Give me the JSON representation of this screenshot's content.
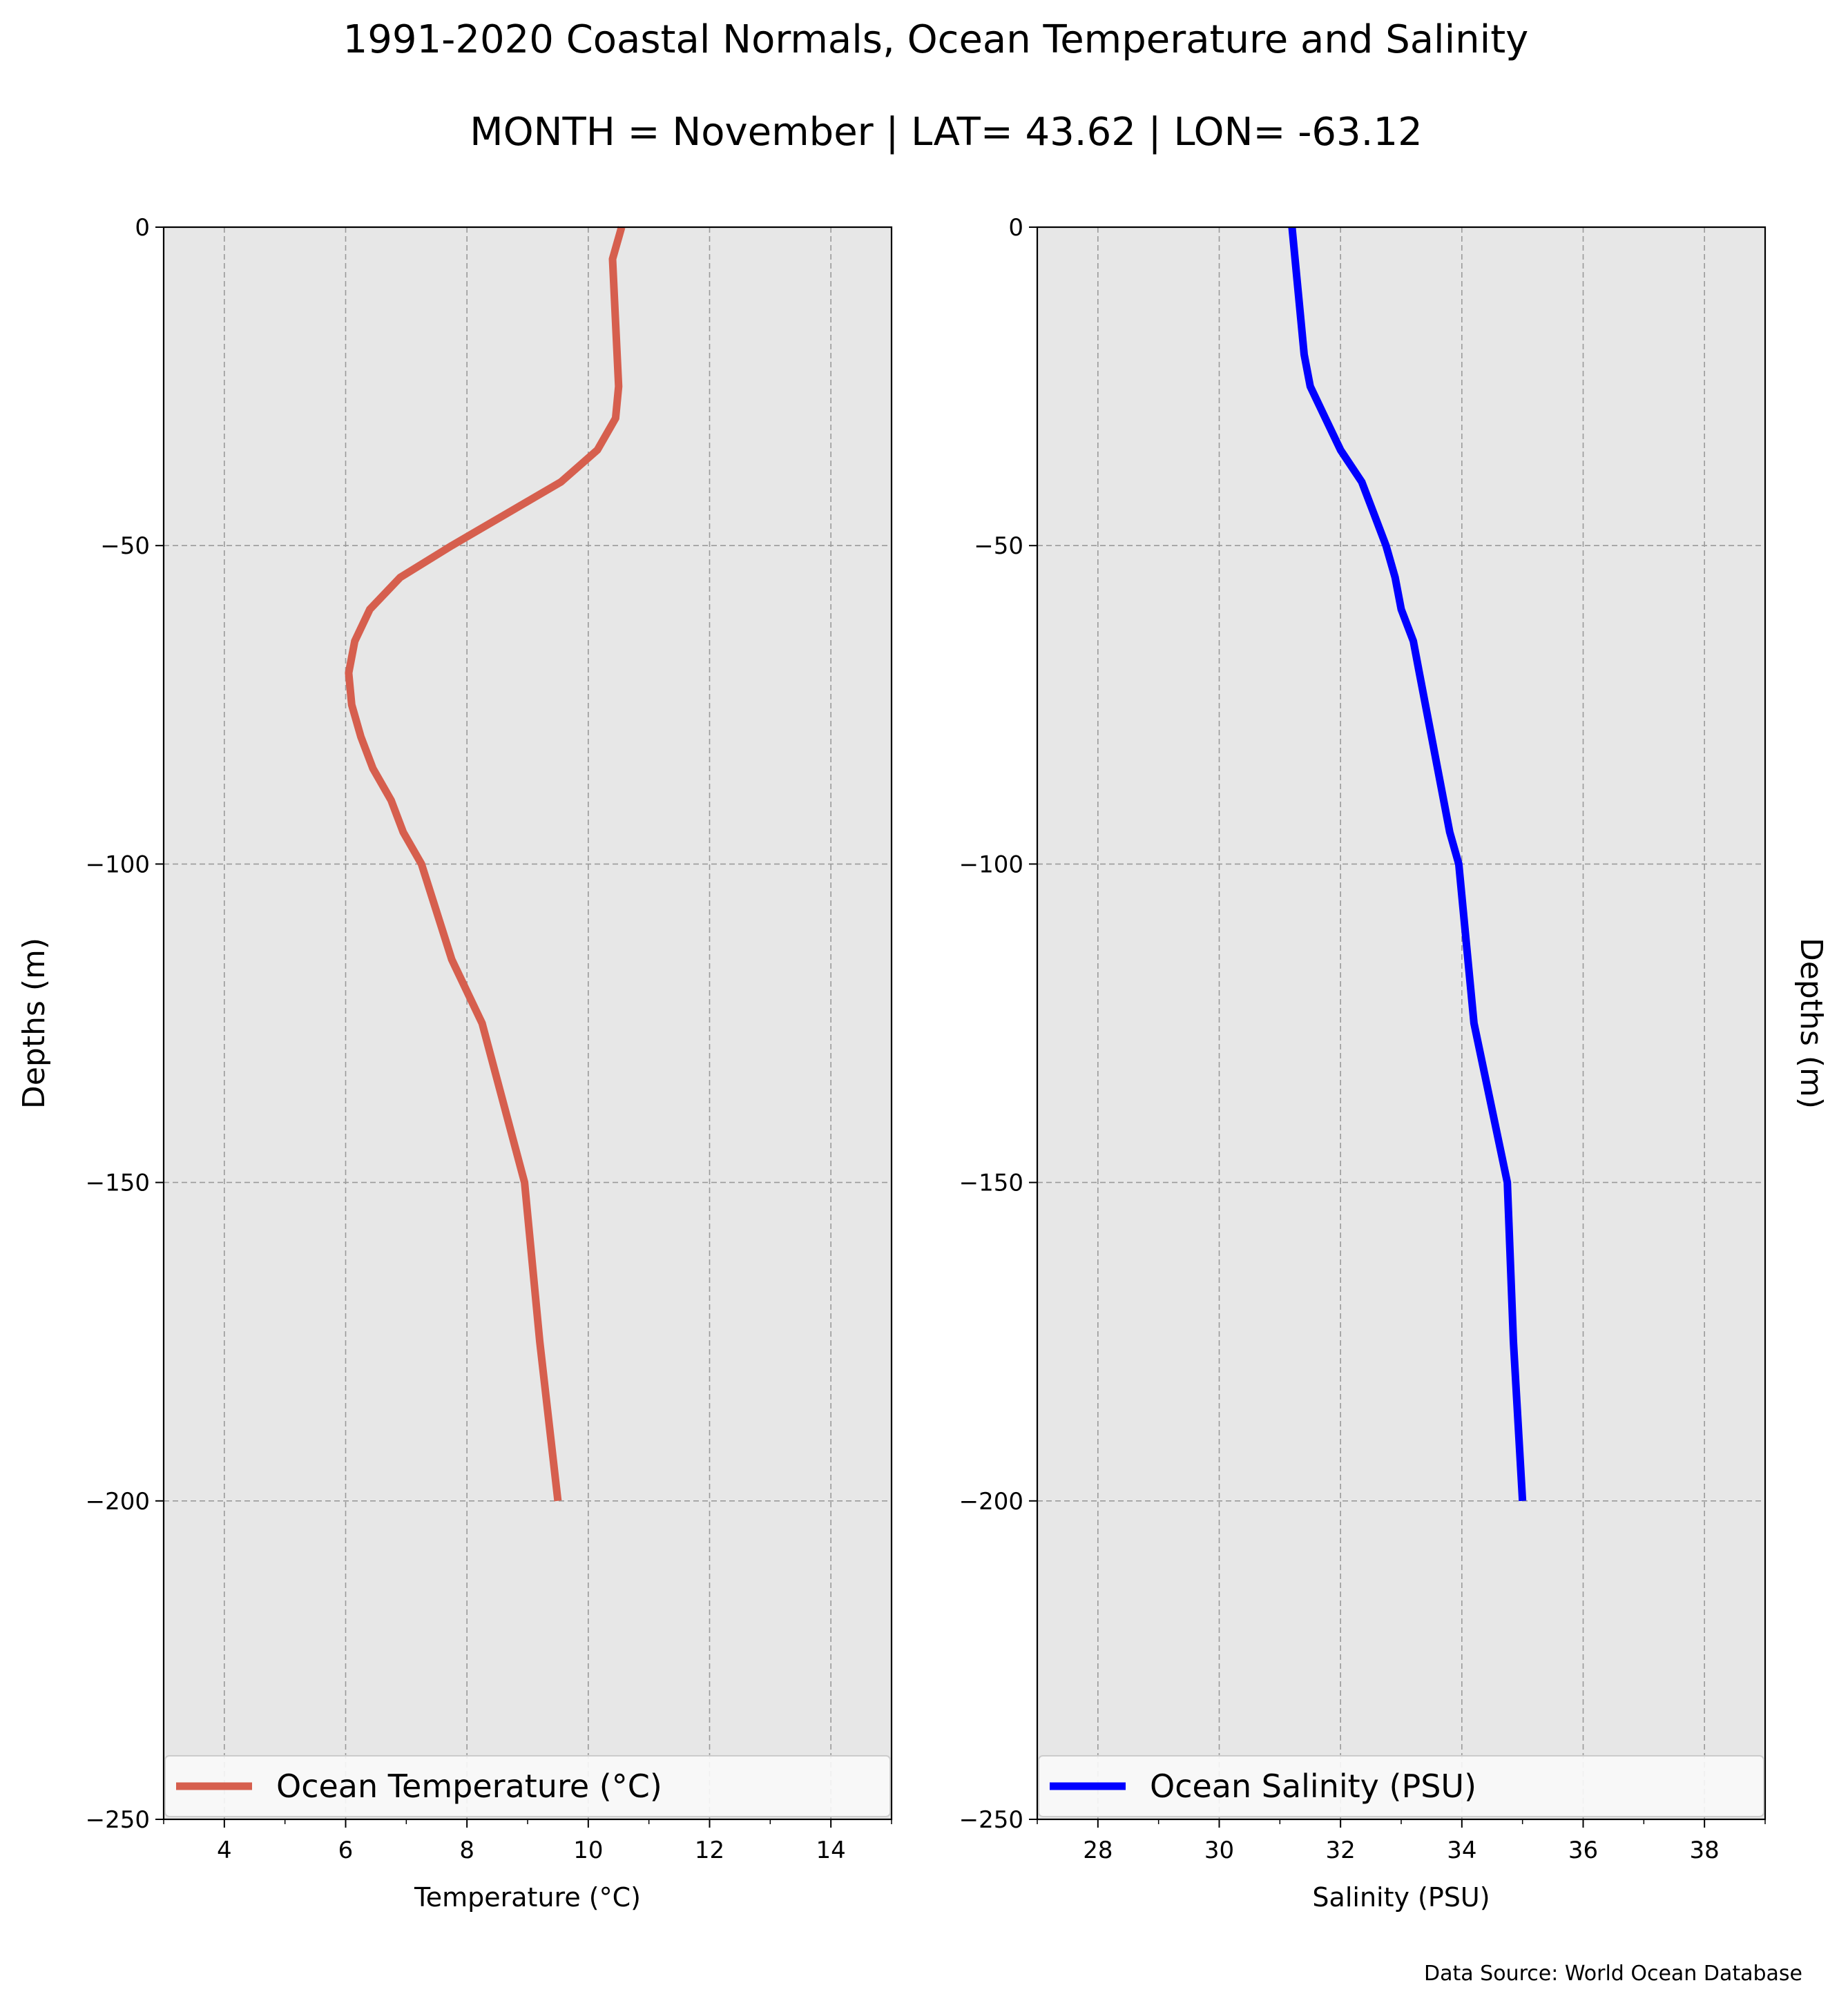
{
  "title": "1991-2020 Coastal Normals, Ocean Temperature and Salinity",
  "subtitle": "MONTH = November | LAT= 43.62 | LON= -63.12",
  "source_note": "Data Source: World Ocean Database",
  "colors": {
    "background": "#ffffff",
    "plot_bg": "#e7e7e7",
    "temperature_line": "#d65f4e",
    "salinity_line": "#0000ff"
  },
  "chart_data": [
    {
      "type": "line",
      "xlabel": "Temperature ($^\\circ$C)",
      "ylabel": "Depths (m)",
      "xlim": [
        3,
        15
      ],
      "ylim": [
        -250,
        0
      ],
      "xticks": [
        "4",
        "6",
        "8",
        "10",
        "12",
        "14"
      ],
      "yticks": [
        "0",
        "−50",
        "−100",
        "−150",
        "−200",
        "−250"
      ],
      "grid": true,
      "legend_position": "bottom",
      "series": [
        {
          "name": "Ocean Temperature ($^\\circ$C)",
          "x": [
            10.55,
            10.4,
            10.45,
            10.5,
            10.45,
            10.15,
            9.55,
            8.65,
            7.75,
            6.9,
            6.4,
            6.15,
            6.05,
            6.1,
            6.25,
            6.45,
            6.75,
            6.95,
            7.25,
            7.75,
            8.25,
            8.95,
            9.2,
            9.5
          ],
          "y": [
            0,
            -5,
            -15,
            -25,
            -30,
            -35,
            -40,
            -45,
            -50,
            -55,
            -60,
            -65,
            -70,
            -75,
            -80,
            -85,
            -90,
            -95,
            -100,
            -115,
            -125,
            -150,
            -175,
            -200
          ]
        }
      ]
    },
    {
      "type": "line",
      "xlabel": "Salinity (PSU)",
      "ylabel": "Depths (m)",
      "xlim": [
        27,
        39
      ],
      "ylim": [
        -250,
        0
      ],
      "xticks": [
        "28",
        "30",
        "32",
        "34",
        "36",
        "38"
      ],
      "yticks": [
        "0",
        "−50",
        "−100",
        "−150",
        "−200",
        "−250"
      ],
      "grid": true,
      "legend_position": "bottom",
      "series": [
        {
          "name": "Ocean Salinity (PSU)",
          "x": [
            31.2,
            31.3,
            31.4,
            31.5,
            31.75,
            32.0,
            32.35,
            32.55,
            32.75,
            32.9,
            33.0,
            33.2,
            33.3,
            33.4,
            33.5,
            33.6,
            33.7,
            33.8,
            33.95,
            34.2,
            34.75,
            34.85,
            35.0
          ],
          "y": [
            0,
            -10,
            -20,
            -25,
            -30,
            -35,
            -40,
            -45,
            -50,
            -55,
            -60,
            -65,
            -70,
            -75,
            -80,
            -85,
            -90,
            -95,
            -100,
            -125,
            -150,
            -175,
            -200
          ]
        }
      ]
    }
  ]
}
